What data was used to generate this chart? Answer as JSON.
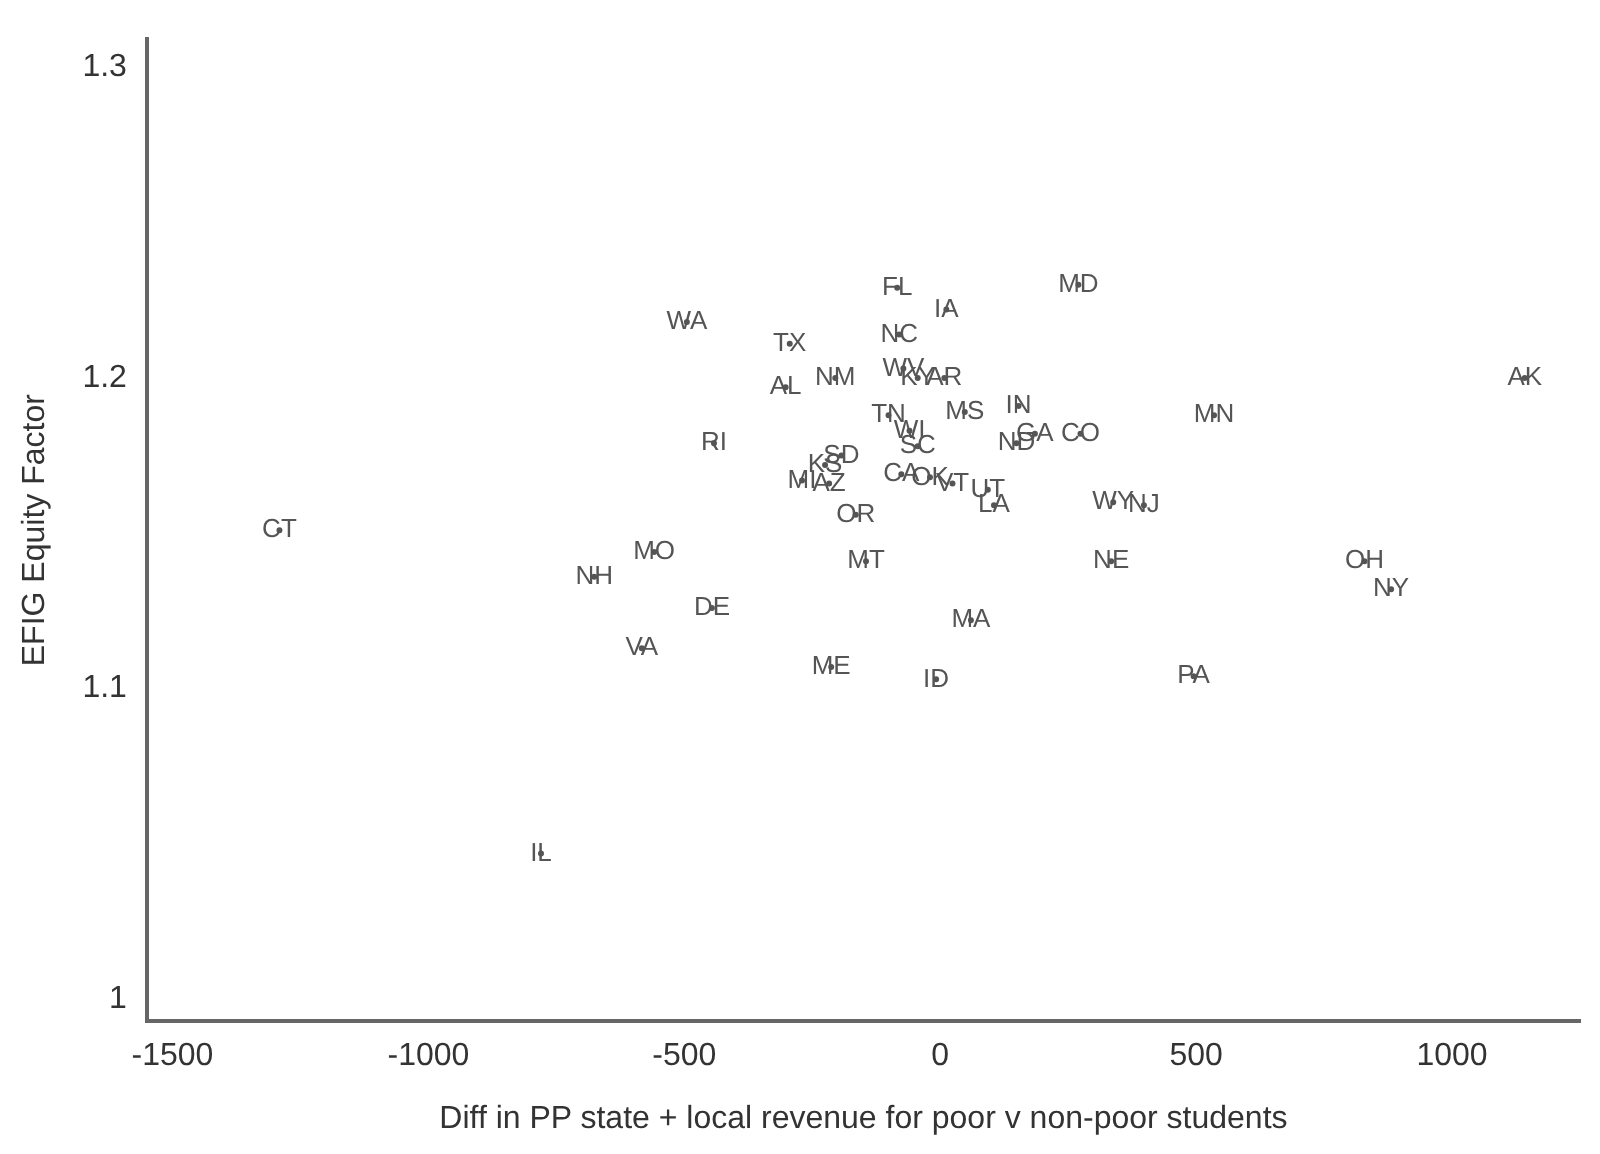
{
  "chart_data": {
    "type": "scatter",
    "xlabel": "Diff in PP state + local revenue for poor v non-poor students",
    "ylabel": "EFIG Equity Factor",
    "xlim": [
      -1550,
      1250
    ],
    "xticks": [
      -1500,
      -1000,
      -500,
      0,
      500,
      1000
    ],
    "ylim": [
      0.993,
      1.309
    ],
    "yticks": [
      1,
      1.1,
      1.2,
      1.3
    ],
    "grid": false,
    "legend": false,
    "series": [
      {
        "color": "#555555",
        "x": [
          -1291,
          -495,
          -442,
          -559,
          -676,
          -446,
          -583,
          -780,
          -294,
          -302,
          -205,
          -84,
          12,
          -80,
          -72,
          -44,
          8,
          270,
          48,
          153,
          -101,
          -60,
          -44,
          185,
          274,
          149,
          -193,
          -225,
          -270,
          -217,
          -165,
          -76,
          -20,
          24,
          93,
          105,
          338,
          398,
          535,
          1142,
          334,
          829,
          881,
          -145,
          60,
          -213,
          -8,
          495
        ],
        "values": [
          1.151,
          1.218,
          1.179,
          1.144,
          1.136,
          1.126,
          1.113,
          1.047,
          1.211,
          1.197,
          1.2,
          1.229,
          1.222,
          1.214,
          1.203,
          1.2,
          1.2,
          1.23,
          1.189,
          1.191,
          1.188,
          1.183,
          1.178,
          1.182,
          1.182,
          1.179,
          1.175,
          1.172,
          1.167,
          1.166,
          1.156,
          1.169,
          1.168,
          1.166,
          1.164,
          1.159,
          1.16,
          1.159,
          1.188,
          1.2,
          1.141,
          1.141,
          1.132,
          1.141,
          1.122,
          1.107,
          1.103,
          1.104
        ],
        "value_labels": [
          "CT",
          "WA",
          "RI",
          "MO",
          "NH",
          "DE",
          "VA",
          "IL",
          "TX",
          "AL",
          "NM",
          "FL",
          "IA",
          "NC",
          "WV",
          "KY",
          "AR",
          "MD",
          "MS",
          "IN",
          "TN",
          "WI",
          "SC",
          "GA",
          "CO",
          "ND",
          "SD",
          "KS",
          "MI",
          "AZ",
          "OR",
          "CA",
          "OK",
          "VT",
          "UT",
          "LA",
          "WY",
          "NJ",
          "MN",
          "AK",
          "NE",
          "OH",
          "NY",
          "MT",
          "MA",
          "ME",
          "ID",
          "PA"
        ]
      }
    ]
  }
}
